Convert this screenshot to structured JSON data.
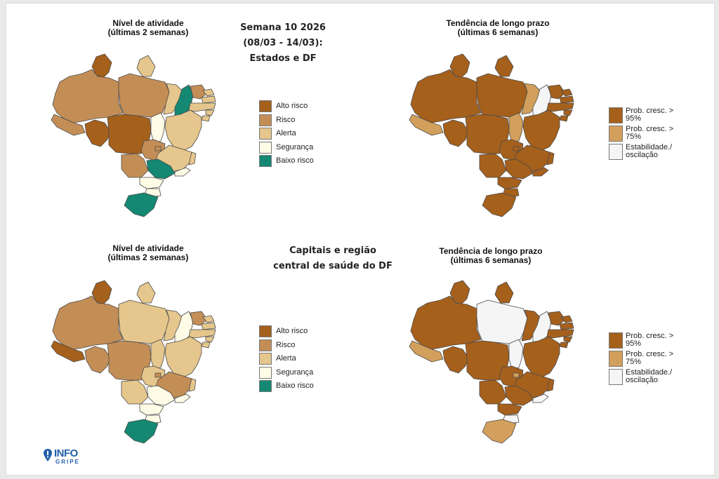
{
  "week_title": {
    "line1": "Semana 10 2026",
    "line2": "(08/03 - 14/03):",
    "line3": "Estados e DF"
  },
  "capitals_title": {
    "line1": "Capitais e região",
    "line2": "central de saúde do DF"
  },
  "activity_title": {
    "line1": "Nível de atividade",
    "line2": "(últimas 2 semanas)"
  },
  "trend_title": {
    "line1": "Tendência de longo prazo",
    "line2": "(últimas 6 semanas)"
  },
  "activity_legend": [
    {
      "label": "Alto risco",
      "color": "#a5601c"
    },
    {
      "label": "Risco",
      "color": "#c38e56"
    },
    {
      "label": "Alerta",
      "color": "#e5c68c"
    },
    {
      "label": "Segurança",
      "color": "#fefbe6"
    },
    {
      "label": "Baixo risco",
      "color": "#148873"
    }
  ],
  "trend_legend": [
    {
      "label": "Prob. cresc. > 95%",
      "color": "#a5601c"
    },
    {
      "label": "Prob. cresc. > 75%",
      "color": "#d2a05c"
    },
    {
      "label": "Estabilidade./ oscilação",
      "color": "#f5f5f5"
    }
  ],
  "logo": {
    "line1": "INFO",
    "line2": "GRIPE"
  },
  "maps": {
    "states_activity": {
      "RR": "Alto risco",
      "AP": "Alerta",
      "AM": "Risco",
      "PA": "Risco",
      "AC": "Risco",
      "RO": "Alto risco",
      "MT": "Alto risco",
      "TO": "Segurança",
      "MA": "Alerta",
      "PI": "Baixo risco",
      "CE": "Risco",
      "RN": "Alerta",
      "PB": "Alerta",
      "PE": "Alerta",
      "AL": "Alerta",
      "SE": "Alerta",
      "BA": "Alerta",
      "GO": "Risco",
      "DF": "Risco",
      "MG": "Alerta",
      "ES": "Alerta",
      "RJ": "Segurança",
      "SP": "Baixo risco",
      "MS": "Risco",
      "PR": "Segurança",
      "SC": "Segurança",
      "RS": "Baixo risco"
    },
    "states_trend": {
      "RR": "Prob. cresc. > 95%",
      "AP": "Prob. cresc. > 95%",
      "AM": "Prob. cresc. > 95%",
      "PA": "Prob. cresc. > 95%",
      "AC": "Prob. cresc. > 75%",
      "RO": "Prob. cresc. > 95%",
      "MT": "Prob. cresc. > 95%",
      "TO": "Prob. cresc. > 75%",
      "MA": "Prob. cresc. > 75%",
      "PI": "Estabilidade./ oscilação",
      "CE": "Prob. cresc. > 95%",
      "RN": "Prob. cresc. > 95%",
      "PB": "Prob. cresc. > 95%",
      "PE": "Prob. cresc. > 95%",
      "AL": "Prob. cresc. > 95%",
      "SE": "Prob. cresc. > 95%",
      "BA": "Prob. cresc. > 95%",
      "GO": "Prob. cresc. > 95%",
      "DF": "Prob. cresc. > 95%",
      "MG": "Prob. cresc. > 95%",
      "ES": "Prob. cresc. > 95%",
      "RJ": "Prob. cresc. > 95%",
      "SP": "Prob. cresc. > 95%",
      "MS": "Prob. cresc. > 95%",
      "PR": "Prob. cresc. > 95%",
      "SC": "Prob. cresc. > 95%",
      "RS": "Prob. cresc. > 95%"
    },
    "capitals_activity": {
      "RR": "Alto risco",
      "AP": "Alerta",
      "AM": "Risco",
      "PA": "Alerta",
      "AC": "Alto risco",
      "RO": "Risco",
      "MT": "Risco",
      "TO": "Alerta",
      "MA": "Alerta",
      "PI": "Segurança",
      "CE": "Risco",
      "RN": "Alerta",
      "PB": "Alerta",
      "PE": "Alerta",
      "AL": "Alerta",
      "SE": "Alerta",
      "BA": "Alerta",
      "GO": "Alerta",
      "DF": "Risco",
      "MG": "Risco",
      "ES": "Alerta",
      "RJ": "Segurança",
      "SP": "Segurança",
      "MS": "Alerta",
      "PR": "Segurança",
      "SC": "Segurança",
      "RS": "Baixo risco"
    },
    "capitals_trend": {
      "RR": "Prob. cresc. > 95%",
      "AP": "Prob. cresc. > 95%",
      "AM": "Prob. cresc. > 95%",
      "PA": "Estabilidade./ oscilação",
      "AC": "Prob. cresc. > 75%",
      "RO": "Prob. cresc. > 95%",
      "MT": "Prob. cresc. > 95%",
      "TO": "Estabilidade./ oscilação",
      "MA": "Prob. cresc. > 95%",
      "PI": "Estabilidade./ oscilação",
      "CE": "Prob. cresc. > 95%",
      "RN": "Prob. cresc. > 95%",
      "PB": "Prob. cresc. > 95%",
      "PE": "Prob. cresc. > 95%",
      "AL": "Prob. cresc. > 95%",
      "SE": "Prob. cresc. > 95%",
      "BA": "Prob. cresc. > 95%",
      "GO": "Prob. cresc. > 95%",
      "DF": "Prob. cresc. > 75%",
      "MG": "Prob. cresc. > 95%",
      "ES": "Prob. cresc. > 95%",
      "RJ": "Estabilidade./ oscilação",
      "SP": "Prob. cresc. > 95%",
      "MS": "Prob. cresc. > 95%",
      "PR": "Prob. cresc. > 95%",
      "SC": "Estabilidade./ oscilação",
      "RS": "Prob. cresc. > 75%"
    }
  }
}
